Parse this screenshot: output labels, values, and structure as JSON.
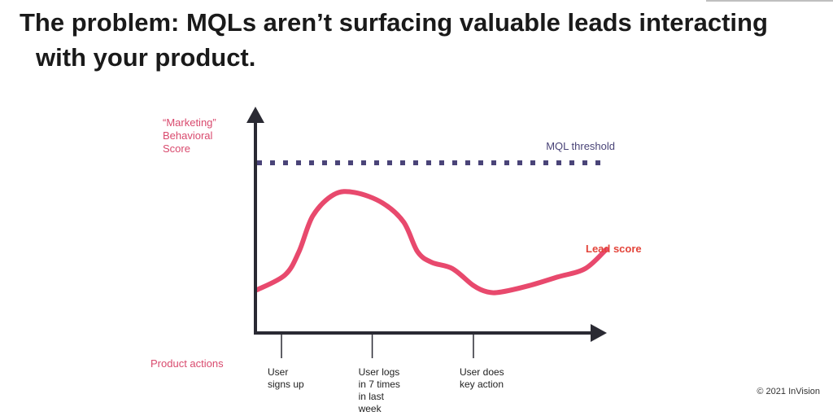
{
  "slide": {
    "title_bold": "The problem:",
    "title_rest_line1": " MQLs aren’t surfacing valuable leads interacting",
    "title_rest_line2": "with your product.",
    "copyright": "© 2021 InVision"
  },
  "colors": {
    "axis": "#2a2a33",
    "pink_label": "#d94a6e",
    "curve": "#e8496d",
    "lead_score_label": "#e3443a",
    "threshold": "#4a4478",
    "threshold_label": "#4a4478",
    "tick_text": "#222222"
  },
  "chart_data": {
    "type": "line",
    "title": "",
    "ylabel_lines": [
      "“Marketing”",
      "Behavioral",
      "Score"
    ],
    "xlabel": "Product actions",
    "threshold": {
      "label": "MQL threshold",
      "value": 80
    },
    "series": [
      {
        "name": "Lead score",
        "x": [
          0,
          8,
          12,
          16,
          22,
          28,
          36,
          42,
          46,
          50,
          56,
          62,
          66,
          70,
          78,
          86,
          94,
          100
        ],
        "y": [
          20,
          27,
          38,
          55,
          65,
          66,
          61,
          52,
          38,
          33,
          30,
          22,
          19,
          19,
          22,
          26,
          30,
          39
        ]
      }
    ],
    "xlim": [
      0,
      100
    ],
    "ylim": [
      0,
      100
    ],
    "annotations": [
      {
        "x": 7,
        "lines": [
          "User",
          "signs up"
        ]
      },
      {
        "x": 33,
        "lines": [
          "User logs",
          "in 7 times",
          "in last",
          "week"
        ]
      },
      {
        "x": 62,
        "lines": [
          "User does",
          "key action"
        ]
      }
    ]
  }
}
